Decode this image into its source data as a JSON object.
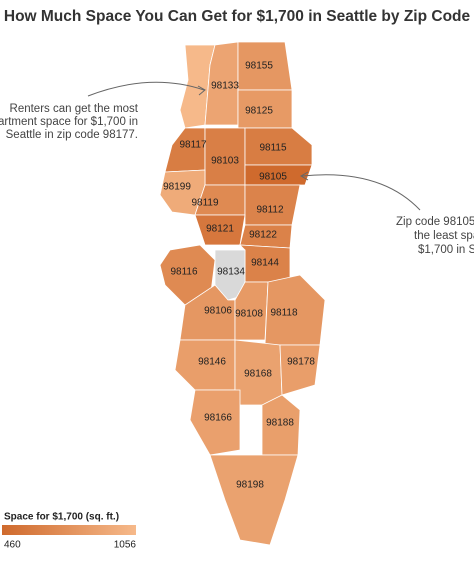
{
  "title": "How Much Space You Can Get for $1,700 in Seattle by Zip Code",
  "annotations": [
    {
      "lines": [
        "Renters can get the most",
        "artment space for $1,700 in",
        "Seattle in zip code 98177."
      ]
    },
    {
      "lines": [
        "Zip code 98105",
        "the least spa",
        "$1,700 in S"
      ]
    }
  ],
  "legend": {
    "title": "Space for $1,700 (sq. ft.)",
    "min": 460,
    "max": 1056,
    "color_low": "#cf6a2d",
    "color_high": "#f6b98a",
    "color_missing": "#d9d9d9"
  },
  "regions": [
    {
      "zip": null,
      "value": 1056
    },
    {
      "zip": "98133",
      "value": 900
    },
    {
      "zip": "98155",
      "value": 800
    },
    {
      "zip": "98125",
      "value": 820
    },
    {
      "zip": "98117",
      "value": 600
    },
    {
      "zip": "98103",
      "value": 620
    },
    {
      "zip": "98115",
      "value": 600
    },
    {
      "zip": "98105",
      "value": 460
    },
    {
      "zip": "98199",
      "value": 950
    },
    {
      "zip": "98119",
      "value": 700
    },
    {
      "zip": "98112",
      "value": 650
    },
    {
      "zip": "98121",
      "value": 560
    },
    {
      "zip": "98122",
      "value": 640
    },
    {
      "zip": "98144",
      "value": 640
    },
    {
      "zip": "98134",
      "value": null
    },
    {
      "zip": "98116",
      "value": 700
    },
    {
      "zip": "98106",
      "value": 800
    },
    {
      "zip": "98108",
      "value": 820
    },
    {
      "zip": "98118",
      "value": 800
    },
    {
      "zip": "98146",
      "value": 850
    },
    {
      "zip": "98168",
      "value": 880
    },
    {
      "zip": "98178",
      "value": 850
    },
    {
      "zip": "98166",
      "value": 870
    },
    {
      "zip": "98188",
      "value": 860
    },
    {
      "zip": "98198",
      "value": 880
    }
  ]
}
